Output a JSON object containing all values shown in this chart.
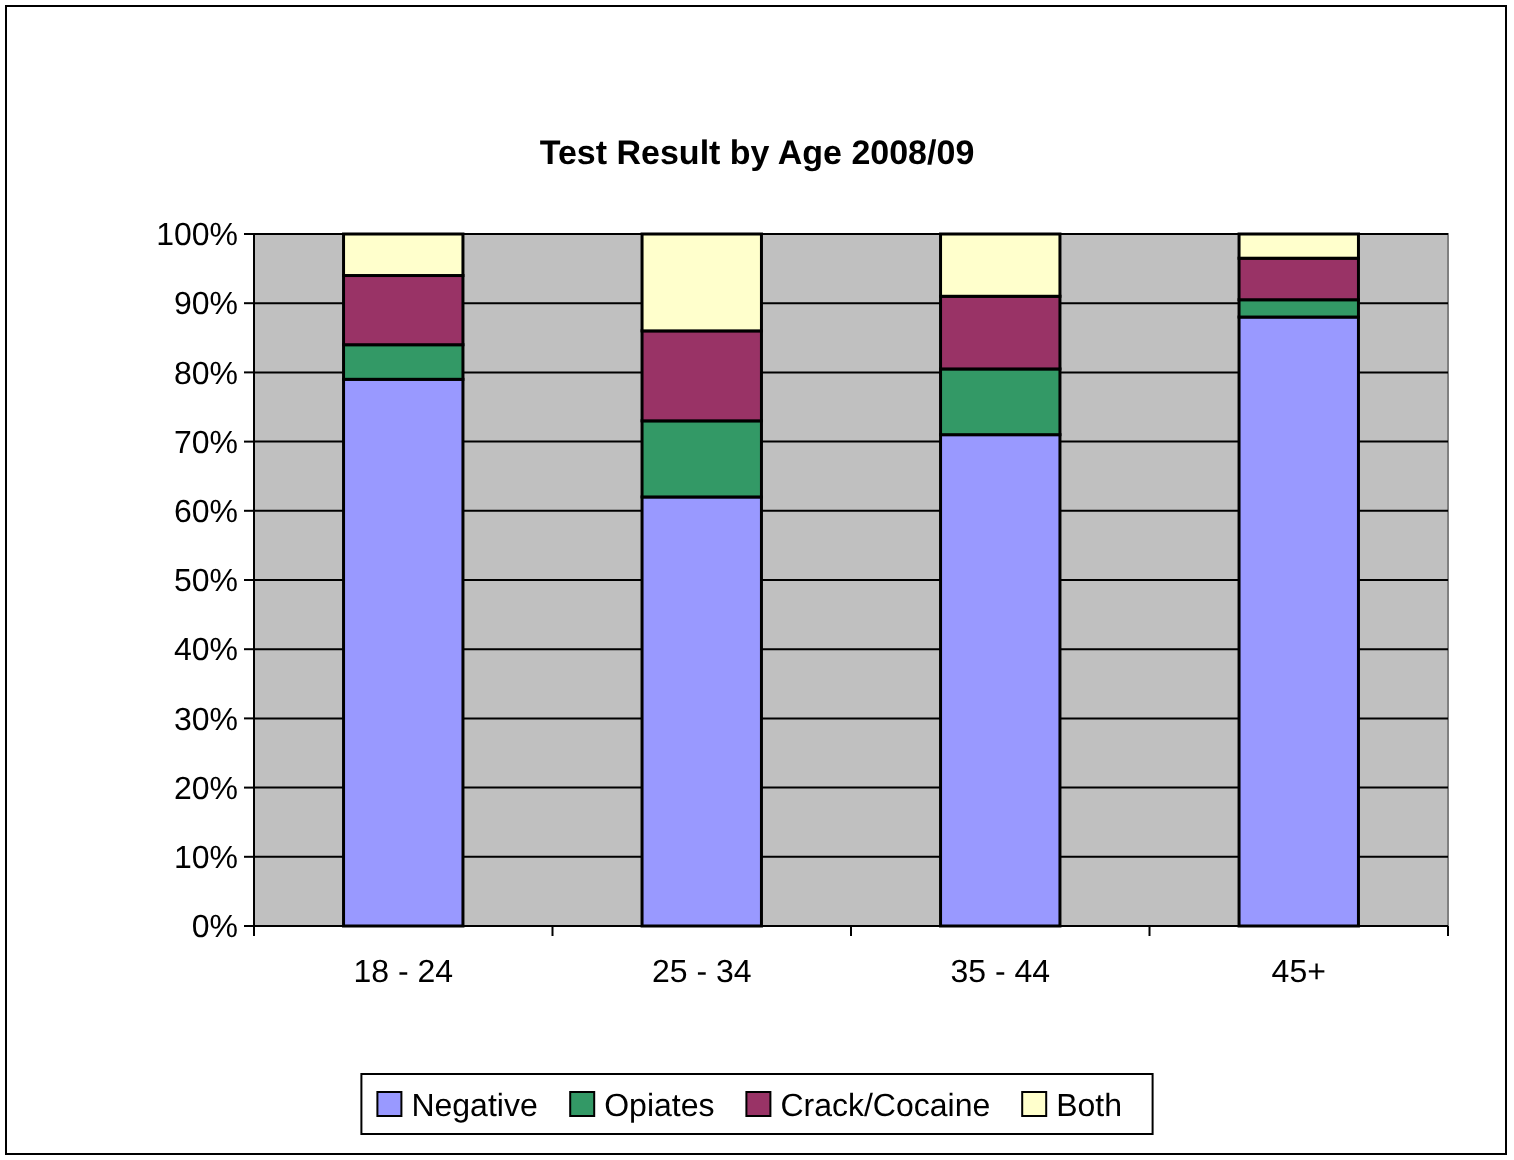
{
  "chart_data": {
    "type": "bar",
    "title": "Test Result by Age 2008/09",
    "categories": [
      "18 - 24",
      "25 - 34",
      "35 - 44",
      "45+"
    ],
    "stacked": true,
    "series": [
      {
        "name": "Negative",
        "color": "#9999ff",
        "values": [
          79,
          62,
          71,
          88
        ]
      },
      {
        "name": "Opiates",
        "color": "#339966",
        "values": [
          5,
          11,
          9.5,
          2.5
        ]
      },
      {
        "name": "Crack/Cocaine",
        "color": "#993366",
        "values": [
          10,
          13,
          10.5,
          6
        ]
      },
      {
        "name": "Both",
        "color": "#ffffcc",
        "values": [
          6,
          14,
          9,
          3.5
        ]
      }
    ],
    "ylim": [
      0,
      100
    ],
    "yticks": [
      {
        "value": 0,
        "label": "0%"
      },
      {
        "value": 10,
        "label": "10%"
      },
      {
        "value": 20,
        "label": "20%"
      },
      {
        "value": 30,
        "label": "30%"
      },
      {
        "value": 40,
        "label": "40%"
      },
      {
        "value": 50,
        "label": "50%"
      },
      {
        "value": 60,
        "label": "60%"
      },
      {
        "value": 70,
        "label": "70%"
      },
      {
        "value": 80,
        "label": "80%"
      },
      {
        "value": 90,
        "label": "90%"
      },
      {
        "value": 100,
        "label": "100%"
      }
    ],
    "grid": "y",
    "legend": "bottom"
  }
}
